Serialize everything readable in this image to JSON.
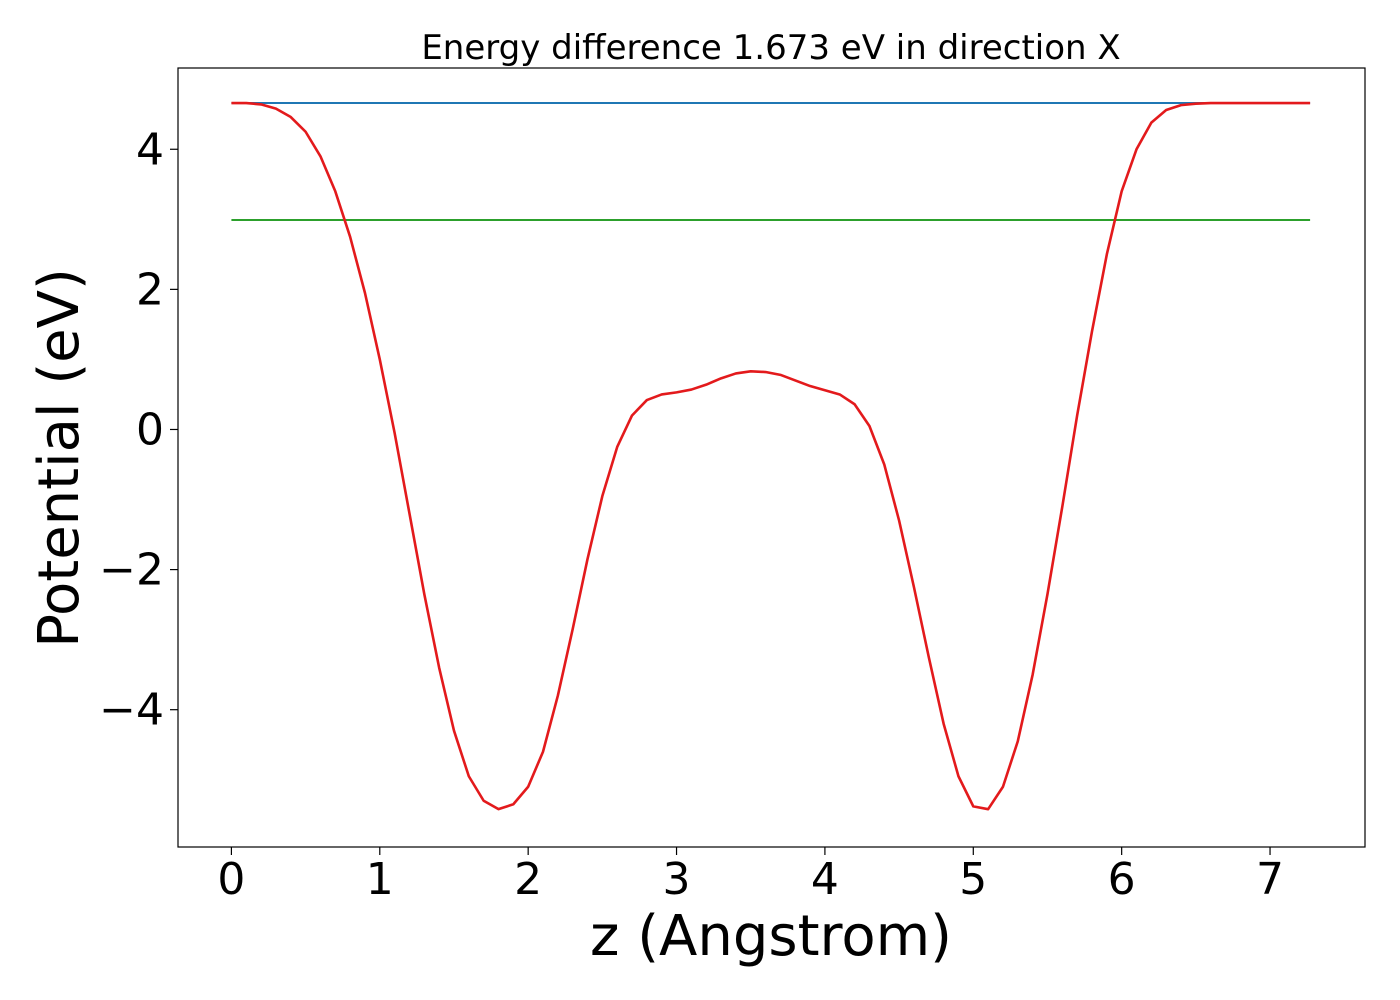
{
  "chart_data": {
    "type": "line",
    "title": "Energy difference 1.673 eV in direction X",
    "xlabel": "z (Angstrom)",
    "ylabel": "Potential (eV)",
    "xlim": [
      -0.36,
      7.64
    ],
    "ylim": [
      -5.96,
      5.16
    ],
    "xticks": [
      0,
      1,
      2,
      3,
      4,
      5,
      6,
      7
    ],
    "xtick_labels": [
      "0",
      "1",
      "2",
      "3",
      "4",
      "5",
      "6",
      "7"
    ],
    "yticks": [
      -4,
      -2,
      0,
      2,
      4
    ],
    "ytick_labels": [
      "−4",
      "−2",
      "0",
      "2",
      "4"
    ],
    "grid": false,
    "series": [
      {
        "color": "#1f77b4",
        "x": [
          0,
          7.27
        ],
        "y": [
          4.66,
          4.66
        ]
      },
      {
        "color": "#2ca02c",
        "x": [
          0,
          7.27
        ],
        "y": [
          2.99,
          2.99
        ]
      },
      {
        "color": "#e31a1c",
        "x": [
          0,
          0.1,
          0.2,
          0.3,
          0.4,
          0.5,
          0.6,
          0.7,
          0.8,
          0.9,
          1.0,
          1.1,
          1.2,
          1.3,
          1.4,
          1.5,
          1.6,
          1.7,
          1.8,
          1.9,
          2.0,
          2.1,
          2.2,
          2.3,
          2.4,
          2.5,
          2.6,
          2.7,
          2.8,
          2.9,
          3.0,
          3.1,
          3.2,
          3.3,
          3.4,
          3.5,
          3.6,
          3.7,
          3.8,
          3.9,
          4.0,
          4.1,
          4.2,
          4.3,
          4.4,
          4.5,
          4.6,
          4.7,
          4.8,
          4.9,
          5.0,
          5.1,
          5.2,
          5.3,
          5.4,
          5.5,
          5.6,
          5.7,
          5.8,
          5.9,
          6.0,
          6.1,
          6.2,
          6.3,
          6.4,
          6.5,
          6.6,
          6.7,
          6.8,
          6.9,
          7.0,
          7.1,
          7.2,
          7.27
        ],
        "y": [
          4.66,
          4.66,
          4.64,
          4.58,
          4.46,
          4.25,
          3.9,
          3.4,
          2.75,
          1.95,
          1.0,
          -0.05,
          -1.2,
          -2.35,
          -3.4,
          -4.3,
          -4.95,
          -5.3,
          -5.42,
          -5.35,
          -5.1,
          -4.6,
          -3.8,
          -2.85,
          -1.85,
          -0.95,
          -0.25,
          0.2,
          0.42,
          0.5,
          0.53,
          0.57,
          0.64,
          0.73,
          0.8,
          0.83,
          0.82,
          0.78,
          0.7,
          0.62,
          0.56,
          0.5,
          0.36,
          0.05,
          -0.5,
          -1.3,
          -2.25,
          -3.25,
          -4.2,
          -4.95,
          -5.38,
          -5.42,
          -5.1,
          -4.45,
          -3.5,
          -2.35,
          -1.1,
          0.2,
          1.4,
          2.5,
          3.4,
          4.0,
          4.38,
          4.56,
          4.63,
          4.65,
          4.66,
          4.66,
          4.66,
          4.66,
          4.66,
          4.66,
          4.66,
          4.66
        ]
      }
    ]
  }
}
